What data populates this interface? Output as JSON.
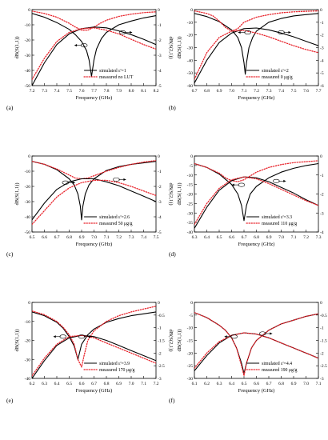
{
  "figure": {
    "title": ""
  },
  "chart_data": [
    {
      "type": "line",
      "panel_label": "(a)",
      "xlabel": "Frequency (GHz)",
      "ylabel_left": "dB(S(1,1))",
      "ylabel_right": "dB(S(2,1))",
      "xlim": [
        7.2,
        8.2
      ],
      "ylim_left": [
        -50,
        0
      ],
      "ylim_right": [
        -5,
        0
      ],
      "xticks": [
        "7.2",
        "7.3",
        "7.4",
        "7.5",
        "7.6",
        "7.7",
        "7.8",
        "7.9",
        "8.0",
        "8.1",
        "8.2"
      ],
      "yticks_left": [
        "0",
        "-10",
        "-20",
        "-30",
        "-40",
        "-50"
      ],
      "yticks_right": [
        "0",
        "-1",
        "-2",
        "-3",
        "-4",
        "-5"
      ],
      "legend": [
        "simulated ε'=1",
        "measured no LUT"
      ],
      "series": [
        {
          "name": "simulated ε'=1",
          "axis": "left",
          "style": "solid",
          "x": [
            7.2,
            7.3,
            7.4,
            7.5,
            7.55,
            7.6,
            7.64,
            7.66,
            7.68,
            7.7,
            7.72,
            7.76,
            7.8,
            7.9,
            8.0,
            8.1,
            8.2
          ],
          "y": [
            -2.5,
            -5,
            -8.5,
            -13,
            -16.5,
            -21,
            -27,
            -33,
            -44,
            -33,
            -26,
            -19,
            -15,
            -10,
            -7.5,
            -5.5,
            -4
          ]
        },
        {
          "name": "measured no LUT",
          "axis": "left",
          "style": "dotted",
          "x": [
            7.2,
            7.3,
            7.4,
            7.5,
            7.55,
            7.6,
            7.65,
            7.7,
            7.75,
            7.8,
            7.9,
            8.0,
            8.1,
            8.2
          ],
          "y": [
            -1,
            -2.5,
            -5,
            -9,
            -11.5,
            -13.5,
            -13.5,
            -11.5,
            -9,
            -7,
            -4.5,
            -3,
            -2,
            -1.5
          ]
        },
        {
          "axis": "right",
          "style": "solid",
          "x": [
            7.2,
            7.3,
            7.4,
            7.5,
            7.6,
            7.7,
            7.8,
            7.9,
            8.0,
            8.1,
            8.2
          ],
          "y": [
            -5,
            -3.5,
            -2.3,
            -1.6,
            -1.25,
            -1.15,
            -1.2,
            -1.4,
            -1.65,
            -1.95,
            -2.3
          ]
        },
        {
          "axis": "right",
          "style": "dotted",
          "x": [
            7.2,
            7.3,
            7.4,
            7.5,
            7.6,
            7.7,
            7.8,
            7.9,
            8.0,
            8.1,
            8.2
          ],
          "y": [
            -4.6,
            -3.2,
            -2.1,
            -1.5,
            -1.25,
            -1.2,
            -1.35,
            -1.6,
            -1.95,
            -2.3,
            -2.6
          ]
        }
      ]
    },
    {
      "type": "line",
      "panel_label": "(b)",
      "xlabel": "Frequency (GHz)",
      "ylabel_left": "dB(S(1,1))",
      "ylabel_right": "dB(S(2,1))",
      "xlim": [
        6.7,
        7.7
      ],
      "ylim_left": [
        -60,
        0
      ],
      "ylim_right": [
        -6,
        0
      ],
      "xticks": [
        "6.7",
        "6.8",
        "6.9",
        "7.0",
        "7.1",
        "7.2",
        "7.3",
        "7.4",
        "7.5",
        "7.6",
        "7.7"
      ],
      "yticks_left": [
        "0",
        "-10",
        "-20",
        "-30",
        "-40",
        "-50",
        "-60"
      ],
      "yticks_right": [
        "0",
        "-1",
        "-2",
        "-3",
        "-4",
        "-5",
        "-6"
      ],
      "legend": [
        "simulated ε'=2",
        "measured 0 μg/g"
      ],
      "series": [
        {
          "name": "simulated ε'=2",
          "axis": "left",
          "style": "solid",
          "x": [
            6.7,
            6.8,
            6.9,
            7.0,
            7.05,
            7.08,
            7.1,
            7.11,
            7.12,
            7.14,
            7.17,
            7.2,
            7.3,
            7.4,
            7.5,
            7.6,
            7.7
          ],
          "y": [
            -3,
            -5.5,
            -9.5,
            -16,
            -22,
            -30,
            -42,
            -51,
            -42,
            -30,
            -22,
            -17,
            -10,
            -7,
            -5,
            -4,
            -3
          ]
        },
        {
          "name": "measured 0 μg/g",
          "axis": "left",
          "style": "dotted",
          "x": [
            6.7,
            6.8,
            6.85,
            6.9,
            6.95,
            7.0,
            7.05,
            7.1,
            7.2,
            7.3,
            7.4,
            7.5,
            7.6,
            7.7
          ],
          "y": [
            -1,
            -3,
            -5,
            -9,
            -14,
            -17,
            -15,
            -10,
            -6,
            -4,
            -2.5,
            -1.8,
            -1.3,
            -1
          ]
        },
        {
          "axis": "right",
          "style": "solid",
          "x": [
            6.7,
            6.8,
            6.9,
            7.0,
            7.1,
            7.2,
            7.3,
            7.4,
            7.5,
            7.6,
            7.7
          ],
          "y": [
            -5.8,
            -4,
            -2.6,
            -1.85,
            -1.5,
            -1.45,
            -1.6,
            -1.85,
            -2.15,
            -2.5,
            -2.85
          ]
        },
        {
          "axis": "right",
          "style": "dotted",
          "x": [
            6.7,
            6.8,
            6.9,
            7.0,
            7.1,
            7.2,
            7.3,
            7.4,
            7.5,
            7.6,
            7.7
          ],
          "y": [
            -5.5,
            -3.4,
            -2.2,
            -1.7,
            -1.65,
            -1.85,
            -2.15,
            -2.5,
            -2.85,
            -3.15,
            -3.4
          ]
        }
      ]
    },
    {
      "type": "line",
      "panel_label": "(c)",
      "xlabel": "Frequency (GHz)",
      "ylabel_left": "dB(S(1,1))",
      "ylabel_right": "dB(S(2,1))",
      "xlim": [
        6.5,
        7.5
      ],
      "ylim_left": [
        -50,
        0
      ],
      "ylim_right": [
        -5,
        0
      ],
      "xticks": [
        "6.5",
        "6.6",
        "6.7",
        "6.8",
        "6.9",
        "7.0",
        "7.1",
        "7.2",
        "7.3",
        "7.4",
        "7.5"
      ],
      "yticks_left": [
        "0",
        "-10",
        "-20",
        "-30",
        "-40",
        "-50"
      ],
      "yticks_right": [
        "0",
        "-1",
        "-2",
        "-3",
        "-4",
        "-5"
      ],
      "legend": [
        "simulated ε'=2.6",
        "measured 50 μg/g"
      ],
      "series": [
        {
          "name": "simulated ε'=2.6",
          "axis": "left",
          "style": "solid",
          "x": [
            6.5,
            6.6,
            6.7,
            6.8,
            6.84,
            6.87,
            6.89,
            6.9,
            6.91,
            6.93,
            6.96,
            7.0,
            7.1,
            7.2,
            7.3,
            7.4,
            7.5
          ],
          "y": [
            -3.5,
            -5.5,
            -9,
            -15,
            -19,
            -25,
            -33,
            -42,
            -33,
            -25,
            -19,
            -15,
            -9.5,
            -7,
            -5.5,
            -4.5,
            -3.5
          ]
        },
        {
          "name": "measured 50 μg/g",
          "axis": "left",
          "style": "dotted",
          "x": [
            6.5,
            6.6,
            6.7,
            6.8,
            6.85,
            6.9,
            6.95,
            7.0,
            7.05,
            7.1,
            7.2,
            7.3,
            7.4,
            7.5
          ],
          "y": [
            -3.5,
            -5.5,
            -8.5,
            -12.5,
            -14.5,
            -15,
            -14.5,
            -13,
            -11.5,
            -10,
            -7.5,
            -5.5,
            -4,
            -3
          ]
        },
        {
          "axis": "right",
          "style": "solid",
          "x": [
            6.5,
            6.6,
            6.7,
            6.8,
            6.9,
            7.0,
            7.1,
            7.2,
            7.3,
            7.4,
            7.5
          ],
          "y": [
            -4.2,
            -3.1,
            -2.2,
            -1.7,
            -1.5,
            -1.5,
            -1.7,
            -1.95,
            -2.3,
            -2.65,
            -3.0
          ]
        },
        {
          "axis": "right",
          "style": "dotted",
          "x": [
            6.5,
            6.6,
            6.7,
            6.8,
            6.9,
            7.0,
            7.1,
            7.2,
            7.3,
            7.4,
            7.5
          ],
          "y": [
            -4.5,
            -3.6,
            -2.7,
            -2.1,
            -1.75,
            -1.6,
            -1.6,
            -1.75,
            -2.0,
            -2.3,
            -2.6
          ]
        }
      ]
    },
    {
      "type": "line",
      "panel_label": "(d)",
      "xlabel": "Frequency (GHz)",
      "ylabel_left": "dB(S(1,1))",
      "ylabel_right": "dB(S(2,1))",
      "xlim": [
        6.3,
        7.3
      ],
      "ylim_left": [
        -40,
        0
      ],
      "ylim_right": [
        -4,
        0
      ],
      "xticks": [
        "6.3",
        "6.4",
        "6.5",
        "6.6",
        "6.7",
        "6.8",
        "6.9",
        "7.0",
        "7.1",
        "7.2",
        "7.3"
      ],
      "yticks_left": [
        "0",
        "-5",
        "-10",
        "-15",
        "-20",
        "-25",
        "-30",
        "-35",
        "-40"
      ],
      "yticks_right": [
        "0",
        "-1",
        "-2",
        "-3",
        "-4"
      ],
      "legend": [
        "simulated ε'=3.3",
        "measured 110 μg/g"
      ],
      "series": [
        {
          "name": "simulated ε'=3.3",
          "axis": "left",
          "style": "solid",
          "x": [
            6.3,
            6.4,
            6.5,
            6.6,
            6.65,
            6.68,
            6.7,
            6.72,
            6.75,
            6.8,
            6.9,
            7.0,
            7.1,
            7.2,
            7.3
          ],
          "y": [
            -4,
            -6,
            -9.5,
            -15,
            -20,
            -26,
            -34,
            -26,
            -20,
            -16,
            -11.5,
            -8.5,
            -6.5,
            -5,
            -4
          ]
        },
        {
          "name": "measured 110 μg/g",
          "axis": "left",
          "style": "dotted",
          "x": [
            6.3,
            6.4,
            6.5,
            6.55,
            6.6,
            6.65,
            6.7,
            6.75,
            6.8,
            6.9,
            7.0,
            7.1,
            7.2,
            7.3
          ],
          "y": [
            -4,
            -6,
            -9,
            -11.5,
            -13,
            -13.5,
            -12.5,
            -10.5,
            -8.5,
            -6,
            -4.5,
            -3.5,
            -3,
            -2.5
          ]
        },
        {
          "axis": "right",
          "style": "solid",
          "x": [
            6.3,
            6.4,
            6.5,
            6.6,
            6.7,
            6.8,
            6.9,
            7.0,
            7.1,
            7.2,
            7.3
          ],
          "y": [
            -3.8,
            -2.7,
            -1.8,
            -1.3,
            -1.1,
            -1.15,
            -1.35,
            -1.65,
            -1.95,
            -2.3,
            -2.6
          ]
        },
        {
          "axis": "right",
          "style": "dotted",
          "x": [
            6.3,
            6.4,
            6.5,
            6.6,
            6.7,
            6.8,
            6.9,
            7.0,
            7.1,
            7.2,
            7.3
          ],
          "y": [
            -3.6,
            -2.5,
            -1.7,
            -1.25,
            -1.1,
            -1.2,
            -1.45,
            -1.75,
            -2.05,
            -2.35,
            -2.6
          ]
        }
      ]
    },
    {
      "type": "line",
      "panel_label": "(e)",
      "xlabel": "Frequency (GHz)",
      "ylabel_left": "dB(S(1,1))",
      "ylabel_right": "dB(S(2,1))",
      "xlim": [
        6.2,
        7.2
      ],
      "ylim_left": [
        -40,
        0
      ],
      "ylim_right": [
        -3,
        0
      ],
      "xticks": [
        "6.2",
        "6.3",
        "6.4",
        "6.5",
        "6.6",
        "6.7",
        "6.8",
        "6.9",
        "7.0",
        "7.1",
        "7.2"
      ],
      "yticks_left": [
        "0",
        "-10",
        "-20",
        "-30",
        "-40"
      ],
      "yticks_right": [
        "0",
        "-0.5",
        "-1",
        "-1.5",
        "-2",
        "-2.5",
        "-3"
      ],
      "legend": [
        "simulated ε'=3.9",
        "measured 170 μg/g"
      ],
      "series": [
        {
          "name": "simulated ε'=3.9",
          "axis": "left",
          "style": "solid",
          "x": [
            6.2,
            6.3,
            6.4,
            6.45,
            6.5,
            6.54,
            6.57,
            6.6,
            6.65,
            6.7,
            6.8,
            6.9,
            7.0,
            7.1,
            7.2
          ],
          "y": [
            -5,
            -7,
            -10.5,
            -13.5,
            -18,
            -23,
            -30,
            -22,
            -17,
            -14,
            -10.5,
            -8.5,
            -7,
            -6,
            -5
          ]
        },
        {
          "name": "measured 170 μg/g",
          "axis": "left",
          "style": "dotted",
          "x": [
            6.2,
            6.3,
            6.4,
            6.45,
            6.5,
            6.54,
            6.57,
            6.6,
            6.62,
            6.65,
            6.7,
            6.8,
            6.9,
            7.0,
            7.1,
            7.2
          ],
          "y": [
            -4.5,
            -6.5,
            -10,
            -13,
            -17,
            -22,
            -30,
            -34,
            -28,
            -20,
            -15,
            -10,
            -7,
            -5,
            -3.5,
            -2
          ]
        },
        {
          "axis": "right",
          "style": "solid",
          "x": [
            6.2,
            6.3,
            6.4,
            6.5,
            6.6,
            6.7,
            6.8,
            6.9,
            7.0,
            7.1,
            7.2
          ],
          "y": [
            -3.0,
            -2.3,
            -1.7,
            -1.4,
            -1.3,
            -1.35,
            -1.5,
            -1.7,
            -1.9,
            -2.1,
            -2.3
          ]
        },
        {
          "axis": "right",
          "style": "dotted",
          "x": [
            6.2,
            6.3,
            6.4,
            6.5,
            6.6,
            6.7,
            6.8,
            6.9,
            7.0,
            7.1,
            7.2
          ],
          "y": [
            -2.9,
            -2.2,
            -1.65,
            -1.35,
            -1.3,
            -1.4,
            -1.6,
            -1.8,
            -2.0,
            -2.2,
            -2.4
          ]
        }
      ]
    },
    {
      "type": "line",
      "panel_label": "(f)",
      "xlabel": "Frequency (GHz)",
      "ylabel_left": "dB(S(1,1))",
      "ylabel_right": "dB(S(2,1))",
      "xlim": [
        6.1,
        7.1
      ],
      "ylim_left": [
        -30,
        0
      ],
      "ylim_right": [
        -3,
        0
      ],
      "xticks": [
        "6.1",
        "6.2",
        "6.3",
        "6.4",
        "6.5",
        "6.6",
        "6.7",
        "6.8",
        "6.9",
        "7.0",
        "7.1"
      ],
      "yticks_left": [
        "0",
        "-5",
        "-10",
        "-15",
        "-20",
        "-25",
        "-30"
      ],
      "yticks_right": [
        "0",
        "-0.5",
        "-1",
        "-1.5",
        "-2",
        "-2.5",
        "-3"
      ],
      "legend": [
        "simulated ε'=4.4",
        "measured 190 μg/g"
      ],
      "series": [
        {
          "name": "simulated ε'=4.4",
          "axis": "left",
          "style": "solid",
          "x": [
            6.1,
            6.2,
            6.3,
            6.35,
            6.4,
            6.44,
            6.48,
            6.5,
            6.52,
            6.56,
            6.6,
            6.7,
            6.8,
            6.9,
            7.0,
            7.1
          ],
          "y": [
            -4,
            -6,
            -9,
            -11,
            -14,
            -18,
            -24,
            -28,
            -24,
            -18,
            -15,
            -11,
            -8.5,
            -7,
            -5.5,
            -4.5
          ]
        },
        {
          "name": "measured 190 μg/g",
          "axis": "left",
          "style": "dotted",
          "x": [
            6.1,
            6.2,
            6.3,
            6.35,
            6.4,
            6.44,
            6.48,
            6.5,
            6.52,
            6.56,
            6.6,
            6.7,
            6.8,
            6.9,
            7.0,
            7.1
          ],
          "y": [
            -4,
            -6,
            -9,
            -11,
            -14,
            -18,
            -25,
            -29,
            -24,
            -18,
            -15,
            -11,
            -8.5,
            -7,
            -5.5,
            -4.5
          ]
        },
        {
          "axis": "right",
          "style": "solid",
          "x": [
            6.1,
            6.2,
            6.3,
            6.4,
            6.5,
            6.6,
            6.7,
            6.8,
            6.9,
            7.0,
            7.1
          ],
          "y": [
            -2.7,
            -2.1,
            -1.6,
            -1.3,
            -1.2,
            -1.25,
            -1.4,
            -1.6,
            -1.8,
            -2.0,
            -2.2
          ]
        },
        {
          "axis": "right",
          "style": "dotted",
          "x": [
            6.1,
            6.2,
            6.3,
            6.4,
            6.5,
            6.6,
            6.7,
            6.8,
            6.9,
            7.0,
            7.1
          ],
          "y": [
            -2.6,
            -2.0,
            -1.55,
            -1.3,
            -1.2,
            -1.25,
            -1.4,
            -1.6,
            -1.8,
            -2.0,
            -2.2
          ]
        }
      ]
    }
  ]
}
